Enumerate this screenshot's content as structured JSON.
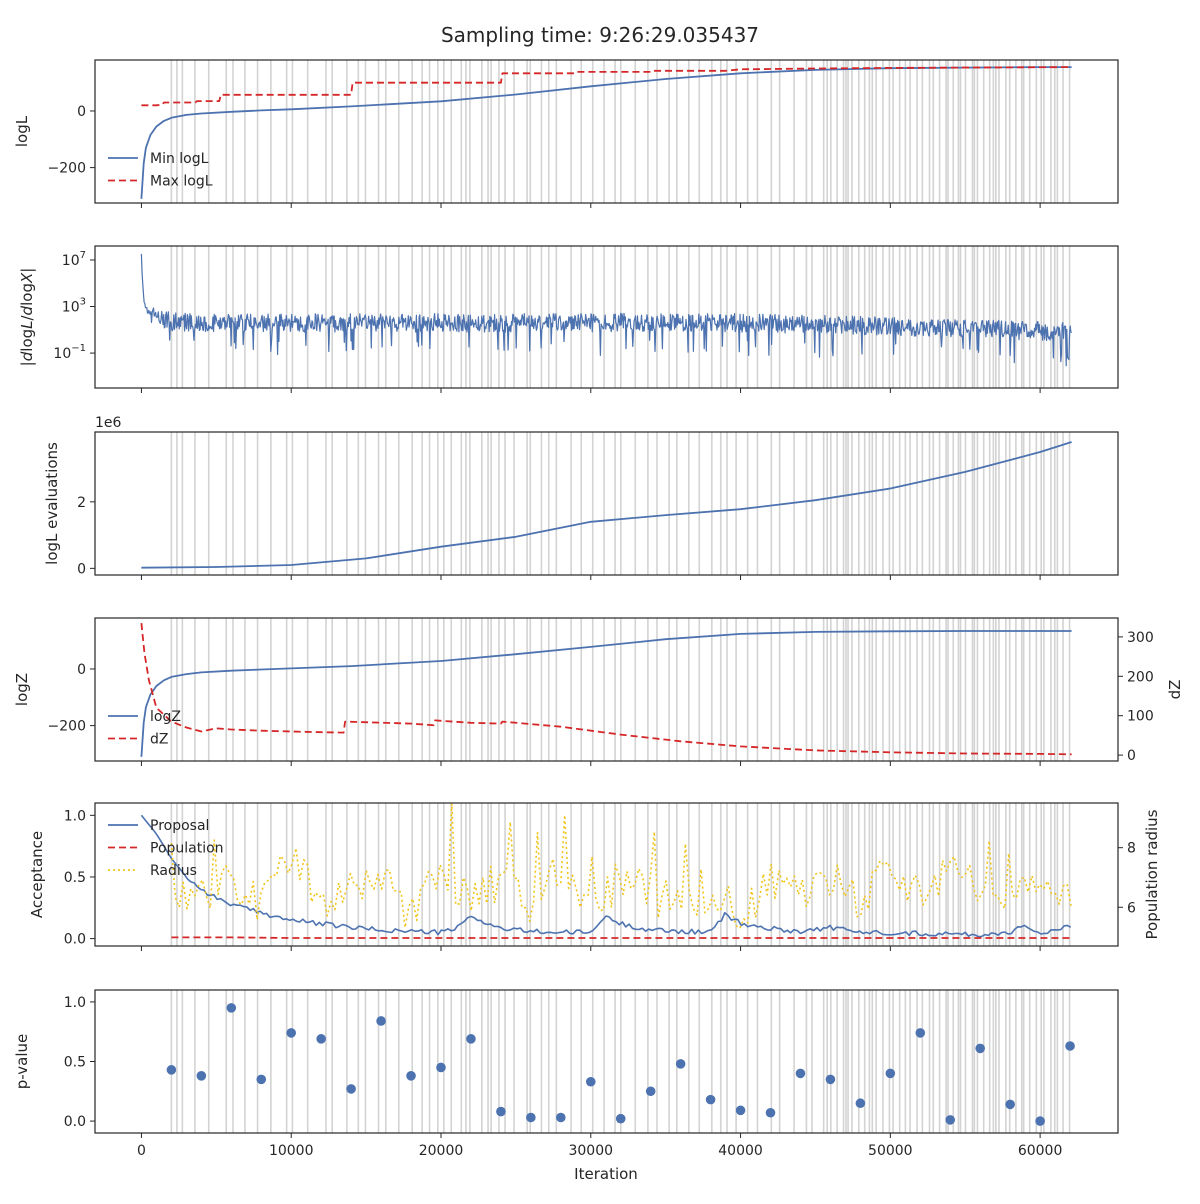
{
  "figure": {
    "title": "Sampling time: 9:26:29.035437",
    "xlabel": "Iteration",
    "colors": {
      "blue": "#4C72B0",
      "red": "#D62728",
      "gold": "#F0C419",
      "band": "#D3D3D3",
      "axis": "#262626"
    }
  },
  "chart_data": [
    {
      "type": "line",
      "ylabel": "logL",
      "xlim": [
        -3100,
        65200
      ],
      "ylim": [
        -325,
        180
      ],
      "yticks": [
        0,
        -200
      ],
      "ytick_labels": [
        "0",
        "−200"
      ],
      "legend": {
        "placement": "lower-left",
        "entries": [
          "Min logL",
          "Max logL"
        ]
      },
      "series": [
        {
          "name": "Min logL",
          "color": "#4C72B0",
          "style": "solid",
          "x": [
            0,
            150,
            300,
            600,
            1000,
            1500,
            2000,
            3000,
            4000,
            6000,
            8000,
            10000,
            14000,
            20000,
            25000,
            30000,
            35000,
            40000,
            45000,
            50000,
            55000,
            60000,
            62100
          ],
          "y": [
            -310,
            -185,
            -130,
            -85,
            -55,
            -35,
            -24,
            -14,
            -9,
            -3,
            2,
            6,
            16,
            34,
            58,
            87,
            113,
            133,
            145,
            151,
            153,
            155,
            155
          ]
        },
        {
          "name": "Max logL",
          "color": "#D62728",
          "style": "dashed",
          "x": [
            0,
            1000,
            1400,
            1500,
            3600,
            3700,
            5200,
            5300,
            14000,
            14100,
            24000,
            24100,
            29000,
            29100,
            34000,
            34100,
            39000,
            40000,
            45000,
            50000,
            62100
          ],
          "y": [
            20,
            20,
            22,
            30,
            30,
            35,
            35,
            57,
            57,
            100,
            100,
            133,
            133,
            138,
            138,
            142,
            142,
            147,
            150,
            152,
            155
          ]
        }
      ]
    },
    {
      "type": "line",
      "ylabel": "|dlogL/dlogX|",
      "yscale": "log",
      "xlim": [
        -3100,
        65200
      ],
      "ylim": [
        -4,
        8.2
      ],
      "yticks": [
        7,
        3,
        -1
      ],
      "ytick_labels": [
        "10^7",
        "10^3",
        "10^-1"
      ],
      "series": [
        {
          "name": "",
          "color": "#4C72B0",
          "style": "solid",
          "x": [
            0,
            50,
            100,
            200,
            400,
            700,
            1000,
            2000,
            5000,
            10000,
            20000,
            30000,
            35000,
            40000,
            50000,
            60000,
            62100
          ],
          "y": [
            7.5,
            5.5,
            4.5,
            3.3,
            2.6,
            2.2,
            2.0,
            1.7,
            1.6,
            1.6,
            1.6,
            1.6,
            1.65,
            1.6,
            1.3,
            0.9,
            0.8
          ]
        }
      ]
    },
    {
      "type": "line",
      "ylabel": "logL evaluations",
      "offset_text": "1e6",
      "xlim": [
        -3100,
        65200
      ],
      "ylim": [
        -0.2,
        4.1
      ],
      "yticks": [
        2,
        0
      ],
      "ytick_labels": [
        "2",
        "0"
      ],
      "series": [
        {
          "name": "",
          "color": "#4C72B0",
          "style": "solid",
          "x": [
            0,
            5000,
            10000,
            15000,
            20000,
            25000,
            30000,
            35000,
            40000,
            45000,
            50000,
            55000,
            60000,
            62100
          ],
          "y": [
            0.02,
            0.04,
            0.1,
            0.3,
            0.65,
            0.95,
            1.4,
            1.6,
            1.78,
            2.05,
            2.4,
            2.9,
            3.5,
            3.8
          ]
        }
      ]
    },
    {
      "type": "line",
      "ylabel": "logZ",
      "y2label": "dZ",
      "xlim": [
        -3100,
        65200
      ],
      "ylim": [
        -325,
        180
      ],
      "y2lim": [
        -15,
        348
      ],
      "yticks": [
        0,
        -200
      ],
      "ytick_labels": [
        "0",
        "−200"
      ],
      "y2ticks": [
        300,
        200,
        100,
        0
      ],
      "y2tick_labels": [
        "300",
        "200",
        "100",
        "0"
      ],
      "legend": {
        "placement": "lower-left",
        "entries": [
          "logZ",
          "dZ"
        ]
      },
      "series": [
        {
          "name": "logZ",
          "color": "#4C72B0",
          "style": "solid",
          "axis": "left",
          "x": [
            0,
            150,
            300,
            600,
            1000,
            1500,
            2000,
            3000,
            4000,
            6000,
            8000,
            10000,
            14000,
            20000,
            25000,
            30000,
            35000,
            40000,
            45000,
            50000,
            55000,
            60000,
            62100
          ],
          "y": [
            -310,
            -190,
            -135,
            -90,
            -60,
            -40,
            -28,
            -18,
            -12,
            -6,
            -2,
            2,
            10,
            28,
            52,
            78,
            105,
            124,
            131,
            133,
            134,
            134,
            134
          ]
        },
        {
          "name": "dZ",
          "color": "#D62728",
          "style": "dashed",
          "axis": "right",
          "x": [
            0,
            200,
            500,
            1000,
            2000,
            3000,
            4000,
            5000,
            6000,
            8000,
            10000,
            12000,
            13500,
            13600,
            18000,
            19500,
            19600,
            22000,
            24000,
            24100,
            28000,
            32000,
            36000,
            40000,
            45000,
            50000,
            55000,
            60000,
            62100
          ],
          "y": [
            335,
            260,
            190,
            120,
            85,
            70,
            60,
            68,
            65,
            62,
            60,
            58,
            57,
            85,
            80,
            76,
            88,
            82,
            80,
            85,
            72,
            52,
            35,
            22,
            12,
            7,
            4,
            3,
            2
          ]
        }
      ]
    },
    {
      "type": "line",
      "ylabel": "Acceptance",
      "y2label": "Population radius",
      "xlim": [
        -3100,
        65200
      ],
      "ylim": [
        -0.06,
        1.1
      ],
      "y2lim": [
        4.7,
        9.5
      ],
      "yticks": [
        1.0,
        0.5,
        0.0
      ],
      "ytick_labels": [
        "1.0",
        "0.5",
        "0.0"
      ],
      "y2ticks": [
        8,
        6
      ],
      "y2tick_labels": [
        "8",
        "6"
      ],
      "legend": {
        "placement": "upper-left",
        "entries": [
          "Proposal",
          "Population",
          "Radius"
        ]
      },
      "series": [
        {
          "name": "Proposal",
          "color": "#4C72B0",
          "style": "solid",
          "axis": "left",
          "x": [
            0,
            1000,
            2000,
            3000,
            4000,
            5000,
            6000,
            7000,
            8000,
            10000,
            12000,
            14000,
            16000,
            18000,
            20000,
            21000,
            22000,
            24000,
            26000,
            28000,
            30000,
            31000,
            32000,
            34000,
            36000,
            38000,
            39000,
            40000,
            42000,
            44000,
            46000,
            48000,
            50000,
            52000,
            54000,
            56000,
            58000,
            59000,
            60000,
            62100
          ],
          "y": [
            1.0,
            0.85,
            0.65,
            0.5,
            0.4,
            0.33,
            0.28,
            0.24,
            0.21,
            0.15,
            0.12,
            0.09,
            0.07,
            0.06,
            0.05,
            0.08,
            0.18,
            0.08,
            0.06,
            0.05,
            0.05,
            0.18,
            0.12,
            0.07,
            0.06,
            0.05,
            0.2,
            0.12,
            0.08,
            0.06,
            0.09,
            0.05,
            0.05,
            0.04,
            0.04,
            0.03,
            0.05,
            0.12,
            0.03,
            0.1
          ]
        },
        {
          "name": "Population",
          "color": "#D62728",
          "style": "dashed",
          "axis": "left",
          "x": [
            2000,
            6000,
            10000,
            20000,
            30000,
            40000,
            50000,
            62100
          ],
          "y": [
            0.01,
            0.01,
            0.005,
            0.005,
            0.005,
            0.005,
            0.005,
            0.005
          ]
        },
        {
          "name": "Radius",
          "color": "#F0C419",
          "style": "dotted",
          "axis": "right",
          "x": [
            2000,
            4000,
            6000,
            8000,
            10000,
            12000,
            14000,
            16000,
            18000,
            20000,
            22000,
            24000,
            26000,
            28000,
            30000,
            32000,
            34000,
            36000,
            38000,
            40000,
            42000,
            44000,
            46000,
            48000,
            50000,
            52000,
            54000,
            56000,
            58000,
            60000,
            62100
          ],
          "y": [
            6.0,
            6.5,
            6.8,
            6.0,
            7.6,
            6.2,
            6.6,
            6.9,
            5.7,
            7.1,
            6.4,
            6.9,
            6.1,
            7.3,
            5.8,
            7.0,
            6.4,
            6.1,
            6.6,
            5.6,
            6.8,
            6.3,
            7.0,
            6.2,
            7.3,
            6.5,
            7.1,
            6.6,
            6.2,
            6.8,
            6.3
          ]
        }
      ]
    },
    {
      "type": "scatter",
      "ylabel": "p-value",
      "xlim": [
        -3100,
        65200
      ],
      "ylim": [
        -0.1,
        1.1
      ],
      "yticks": [
        1.0,
        0.5,
        0.0
      ],
      "ytick_labels": [
        "1.0",
        "0.5",
        "0.0"
      ],
      "xticks": [
        0,
        10000,
        20000,
        30000,
        40000,
        50000,
        60000
      ],
      "xtick_labels": [
        "0",
        "10000",
        "20000",
        "30000",
        "40000",
        "50000",
        "60000"
      ],
      "series": [
        {
          "name": "",
          "color": "#4C72B0",
          "x": [
            2000,
            4000,
            6000,
            8000,
            10000,
            12000,
            14000,
            16000,
            18000,
            20000,
            22000,
            24000,
            26000,
            28000,
            30000,
            32000,
            34000,
            36000,
            38000,
            40000,
            42000,
            44000,
            46000,
            48000,
            50000,
            52000,
            54000,
            56000,
            58000,
            60000,
            62000
          ],
          "y": [
            0.43,
            0.38,
            0.95,
            0.35,
            0.74,
            0.69,
            0.27,
            0.84,
            0.38,
            0.45,
            0.69,
            0.08,
            0.03,
            0.03,
            0.33,
            0.02,
            0.25,
            0.48,
            0.18,
            0.09,
            0.07,
            0.4,
            0.35,
            0.15,
            0.4,
            0.74,
            0.01,
            0.61,
            0.14,
            0.0,
            0.63
          ]
        }
      ]
    }
  ]
}
